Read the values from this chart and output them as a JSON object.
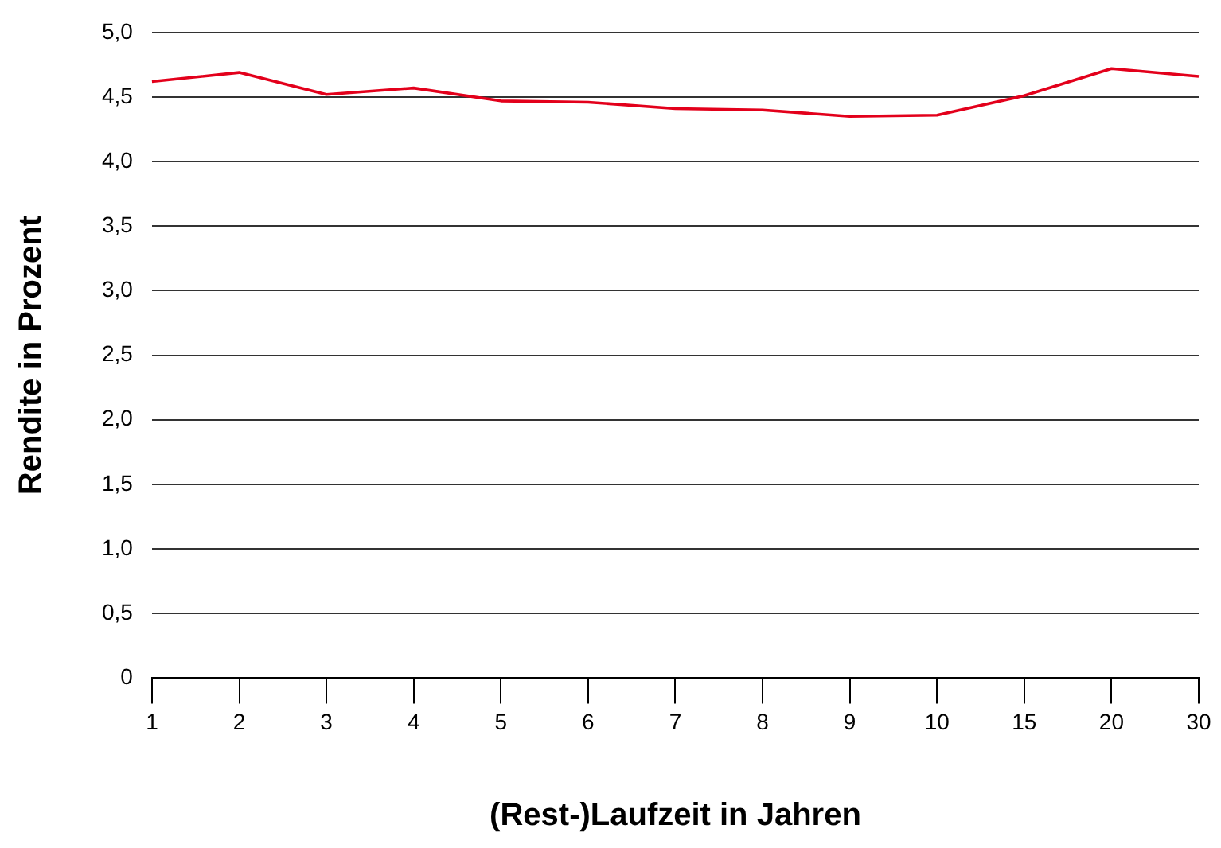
{
  "chart_data": {
    "type": "line",
    "xlabel": "(Rest-)Laufzeit in Jahren",
    "ylabel": "Rendite in Prozent",
    "categories": [
      "1",
      "2",
      "3",
      "4",
      "5",
      "6",
      "7",
      "8",
      "9",
      "10",
      "15",
      "20",
      "30"
    ],
    "series": [
      {
        "color": "#e3001b",
        "values": [
          4.62,
          4.69,
          4.52,
          4.57,
          4.47,
          4.46,
          4.41,
          4.4,
          4.35,
          4.36,
          4.51,
          4.72,
          4.66
        ]
      }
    ],
    "ylim": [
      0,
      5
    ],
    "yticks": [
      0,
      {
        "value": 0.5,
        "label": "0,5"
      },
      {
        "value": 1,
        "label": "1,0"
      },
      {
        "value": 1.5,
        "label": "1,5"
      },
      {
        "value": 2,
        "label": "2,0"
      },
      {
        "value": 2.5,
        "label": "2,5"
      },
      {
        "value": 3,
        "label": "3,0"
      },
      {
        "value": 3.5,
        "label": "3,5"
      },
      {
        "value": 4,
        "label": "4,0"
      },
      {
        "value": 4.5,
        "label": "4,5"
      },
      {
        "value": 5,
        "label": "5,0"
      }
    ],
    "grid": "y",
    "legend": false,
    "marker": "none",
    "line_style": "solid"
  }
}
